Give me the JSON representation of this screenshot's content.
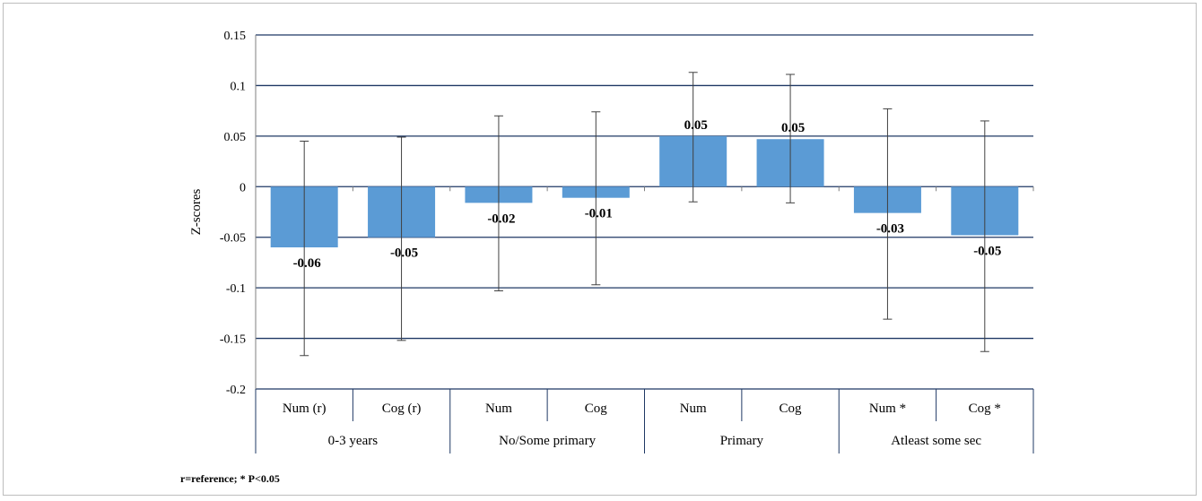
{
  "chart_data": {
    "type": "bar",
    "ylabel": "Z-scores",
    "ylim": [
      -0.2,
      0.15
    ],
    "yticks": [
      "0.15",
      "0.1",
      "0.05",
      "0",
      "-0.05",
      "-0.1",
      "-0.15",
      "-0.2"
    ],
    "grid": true,
    "categories": [
      "Num (r)",
      "Cog (r)",
      "Num",
      "Cog",
      "Num",
      "Cog",
      "Num *",
      "Cog *"
    ],
    "groups": [
      "0-3 years",
      "No/Some primary",
      "Primary",
      "Atleast some sec"
    ],
    "values": [
      -0.06,
      -0.05,
      -0.016,
      -0.011,
      0.05,
      0.047,
      -0.026,
      -0.048
    ],
    "value_labels": [
      "-0.06",
      "-0.05",
      "-0.02",
      "-0.01",
      "0.05",
      "0.05",
      "-0.03",
      "-0.05"
    ],
    "error_low": [
      -0.167,
      -0.152,
      -0.103,
      -0.097,
      -0.015,
      -0.016,
      -0.131,
      -0.163
    ],
    "error_high": [
      0.045,
      0.049,
      0.07,
      0.074,
      0.113,
      0.111,
      0.077,
      0.065
    ],
    "bar_color": "#5b9bd5",
    "grid_color": "#1f3864"
  },
  "footnote": "r=reference; * P<0.05"
}
